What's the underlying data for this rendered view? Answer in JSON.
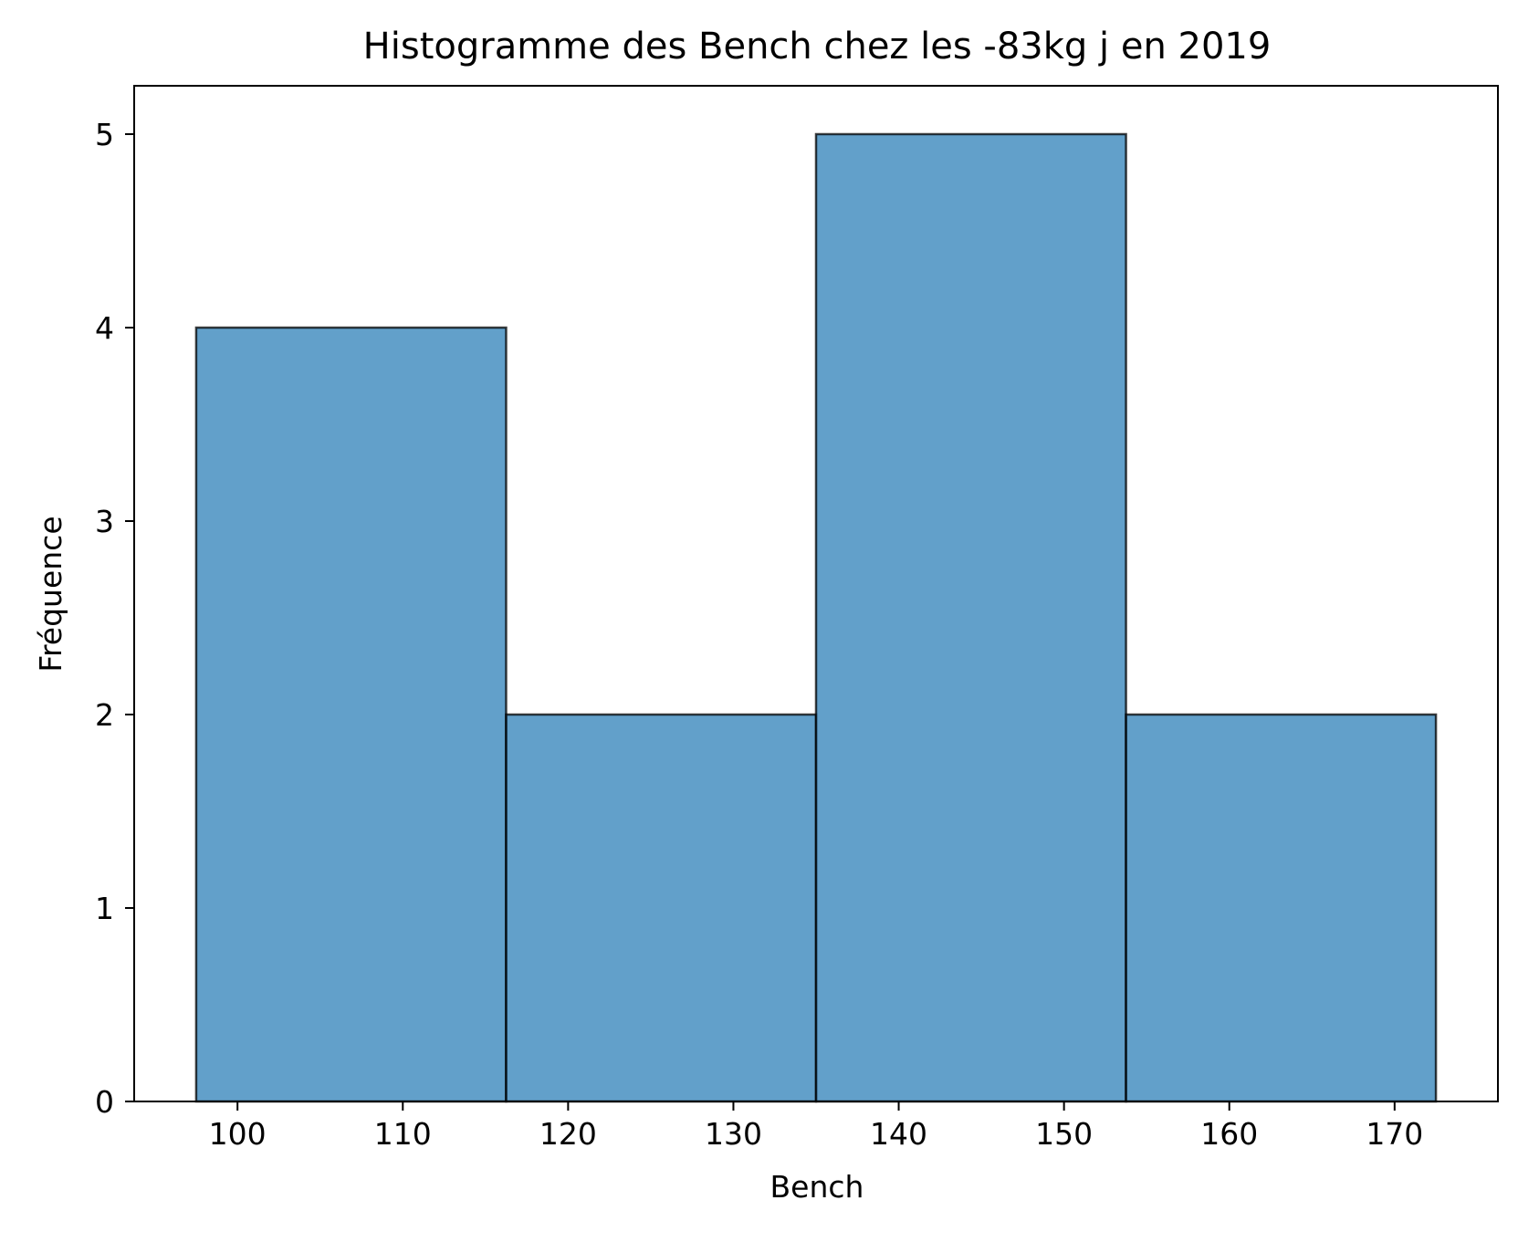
{
  "chart_data": {
    "type": "bar",
    "title": "Histogramme des Bench chez les -83kg j en 2019",
    "xlabel": "Bench",
    "ylabel": "Fréquence",
    "xlim": [
      93.75,
      176.25
    ],
    "ylim": [
      0,
      5.25
    ],
    "x_ticks": [
      "100",
      "110",
      "120",
      "130",
      "140",
      "150",
      "160",
      "170"
    ],
    "y_ticks": [
      "0",
      "1",
      "2",
      "3",
      "4",
      "5"
    ],
    "bins": [
      {
        "from": 97.5,
        "to": 116.25,
        "count": 4
      },
      {
        "from": 116.25,
        "to": 135.0,
        "count": 2
      },
      {
        "from": 135.0,
        "to": 153.75,
        "count": 5
      },
      {
        "from": 153.75,
        "to": 172.5,
        "count": 2
      }
    ],
    "grid": false,
    "colors": {
      "bar_fill": "#1f77b4",
      "bar_edge": "#000000"
    }
  }
}
